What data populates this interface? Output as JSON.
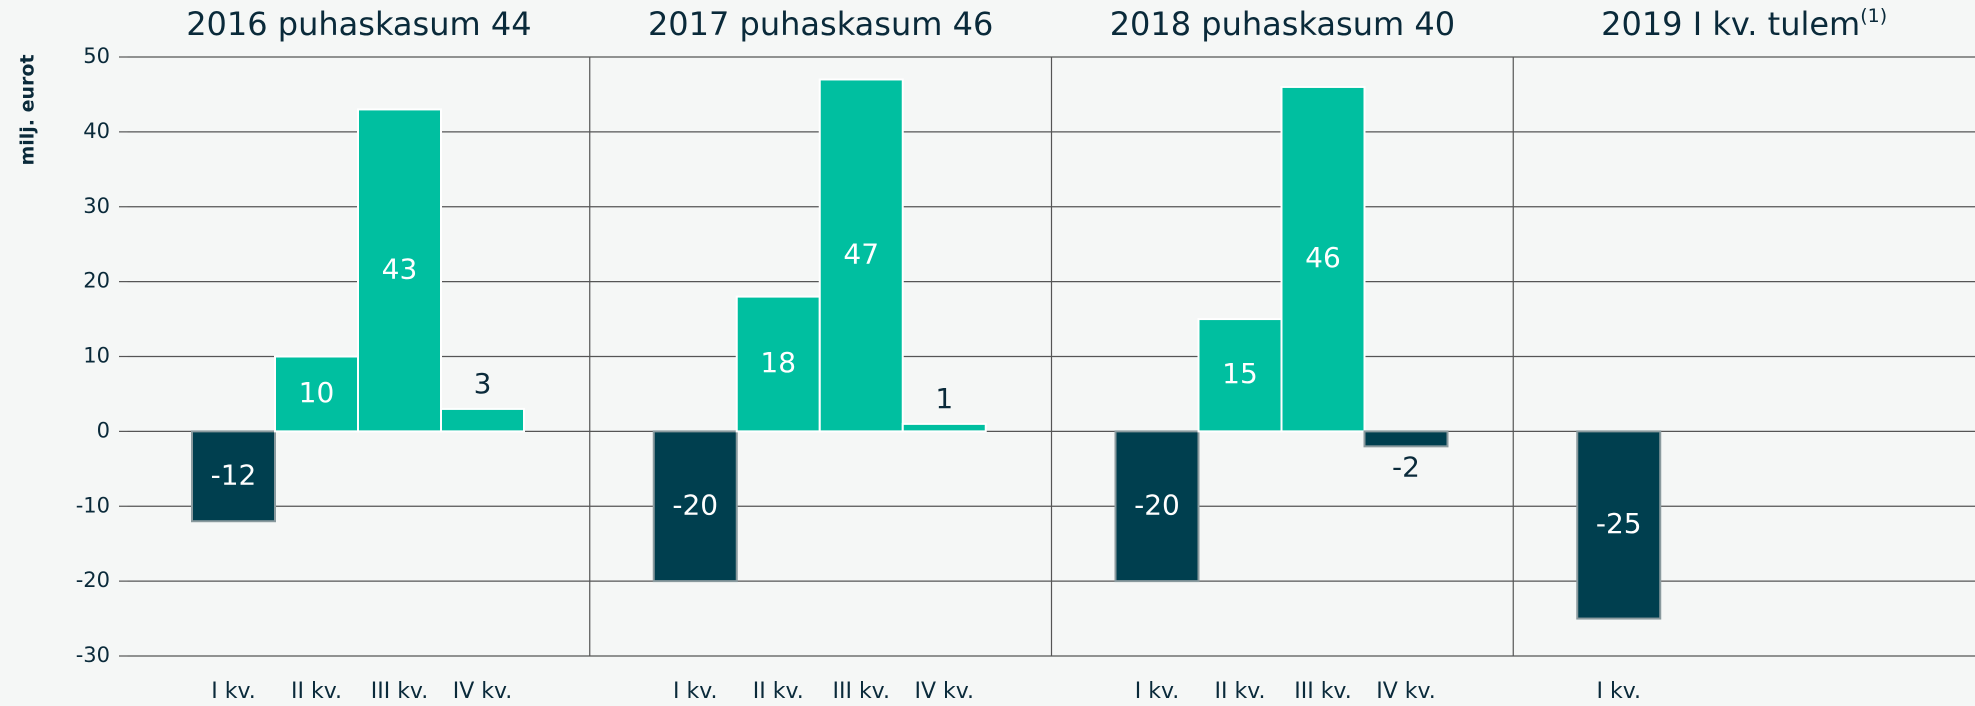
{
  "chart_data": {
    "type": "bar",
    "y_label": "milj. eurot",
    "ylim": [
      -30,
      50
    ],
    "yticks": [
      -30,
      -20,
      -10,
      0,
      10,
      20,
      30,
      40,
      50
    ],
    "grid": true,
    "positive_color": "#00bfa0",
    "negative_color": "#003f4f",
    "panels": [
      {
        "title": "2016 puhaskasum 44",
        "categories": [
          "I kv.",
          "II kv.",
          "III kv.",
          "IV kv."
        ],
        "values": [
          -12,
          10,
          43,
          3
        ]
      },
      {
        "title": "2017 puhaskasum 46",
        "categories": [
          "I kv.",
          "II kv.",
          "III kv.",
          "IV kv."
        ],
        "values": [
          -20,
          18,
          47,
          1
        ]
      },
      {
        "title": "2018 puhaskasum 40",
        "categories": [
          "I kv.",
          "II kv.",
          "III kv.",
          "IV kv."
        ],
        "values": [
          -20,
          15,
          46,
          -2
        ]
      },
      {
        "title": "2019 I kv. tulem",
        "title_superscript": "(1)",
        "categories": [
          "I kv."
        ],
        "values": [
          -25
        ]
      }
    ]
  }
}
